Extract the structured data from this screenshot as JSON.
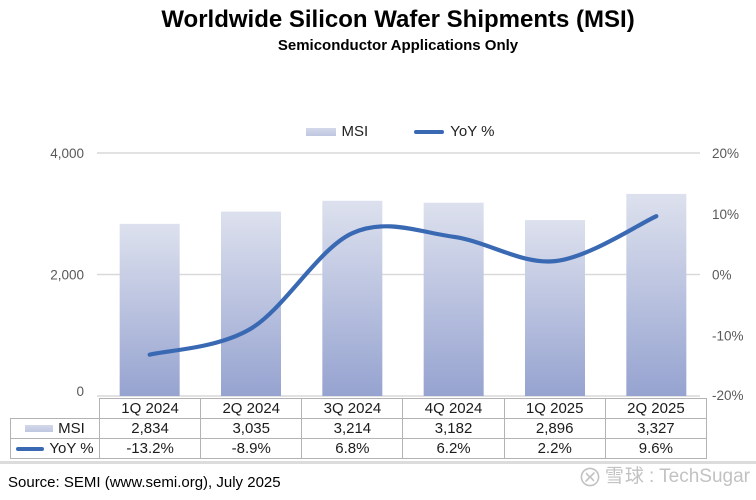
{
  "header": {
    "title": "Worldwide Silicon Wafer Shipments (MSI)",
    "subtitle": "Semiconductor Applications Only"
  },
  "legend": {
    "items": [
      {
        "label": "MSI",
        "swatch": "bar-swatch"
      },
      {
        "label": "YoY %",
        "swatch": "line-swatch"
      }
    ]
  },
  "chart_data": {
    "type": "combo-bar-line",
    "categories": [
      "1Q 2024",
      "2Q 2024",
      "3Q 2024",
      "4Q 2024",
      "1Q 2025",
      "2Q 2025"
    ],
    "series": [
      {
        "name": "MSI",
        "type": "bar",
        "axis": "left",
        "values": [
          2834,
          3035,
          3214,
          3182,
          2896,
          3327
        ]
      },
      {
        "name": "YoY %",
        "type": "line",
        "axis": "right",
        "values": [
          -13.2,
          -8.9,
          6.8,
          6.2,
          2.2,
          9.6
        ]
      }
    ],
    "left_axis": {
      "min": 0,
      "max": 4000,
      "ticks": [
        {
          "label": "0",
          "value": 0
        },
        {
          "label": "2,000",
          "value": 2000
        },
        {
          "label": "4,000",
          "value": 4000
        }
      ]
    },
    "right_axis": {
      "min": -20,
      "max": 20,
      "ticks": [
        {
          "label": "-20%",
          "value": -20
        },
        {
          "label": "-10%",
          "value": -10
        },
        {
          "label": "0%",
          "value": 0
        },
        {
          "label": "10%",
          "value": 10
        },
        {
          "label": "20%",
          "value": 20
        }
      ]
    },
    "grid": "horizontal",
    "legend_position": "top-center"
  },
  "table": {
    "columns": [
      "1Q 2024",
      "2Q 2024",
      "3Q 2024",
      "4Q 2024",
      "1Q 2025",
      "2Q 2025"
    ],
    "rows": [
      {
        "header": "MSI",
        "swatch": "bar",
        "cells": [
          "2,834",
          "3,035",
          "3,214",
          "3,182",
          "2,896",
          "3,327"
        ]
      },
      {
        "header": "YoY %",
        "swatch": "line",
        "cells": [
          "-13.2%",
          "-8.9%",
          "6.8%",
          "6.2%",
          "2.2%",
          "9.6%"
        ]
      }
    ]
  },
  "footer": {
    "source": "Source: SEMI (www.semi.org), July 2025",
    "watermark_icon": "xueqiu-snowball-icon",
    "watermark_text": "雪球",
    "watermark_suffix": ": TechSugar"
  },
  "colors": {
    "bar_gradient_top": "#dde1ee",
    "bar_gradient_bottom": "#96a3d0",
    "line": "#3a69b4",
    "gridline": "#d9d9d9",
    "axis_text": "#595959",
    "table_border": "#b3b3b3",
    "watermark": "#c2c2c2",
    "title_text": "#000000"
  }
}
